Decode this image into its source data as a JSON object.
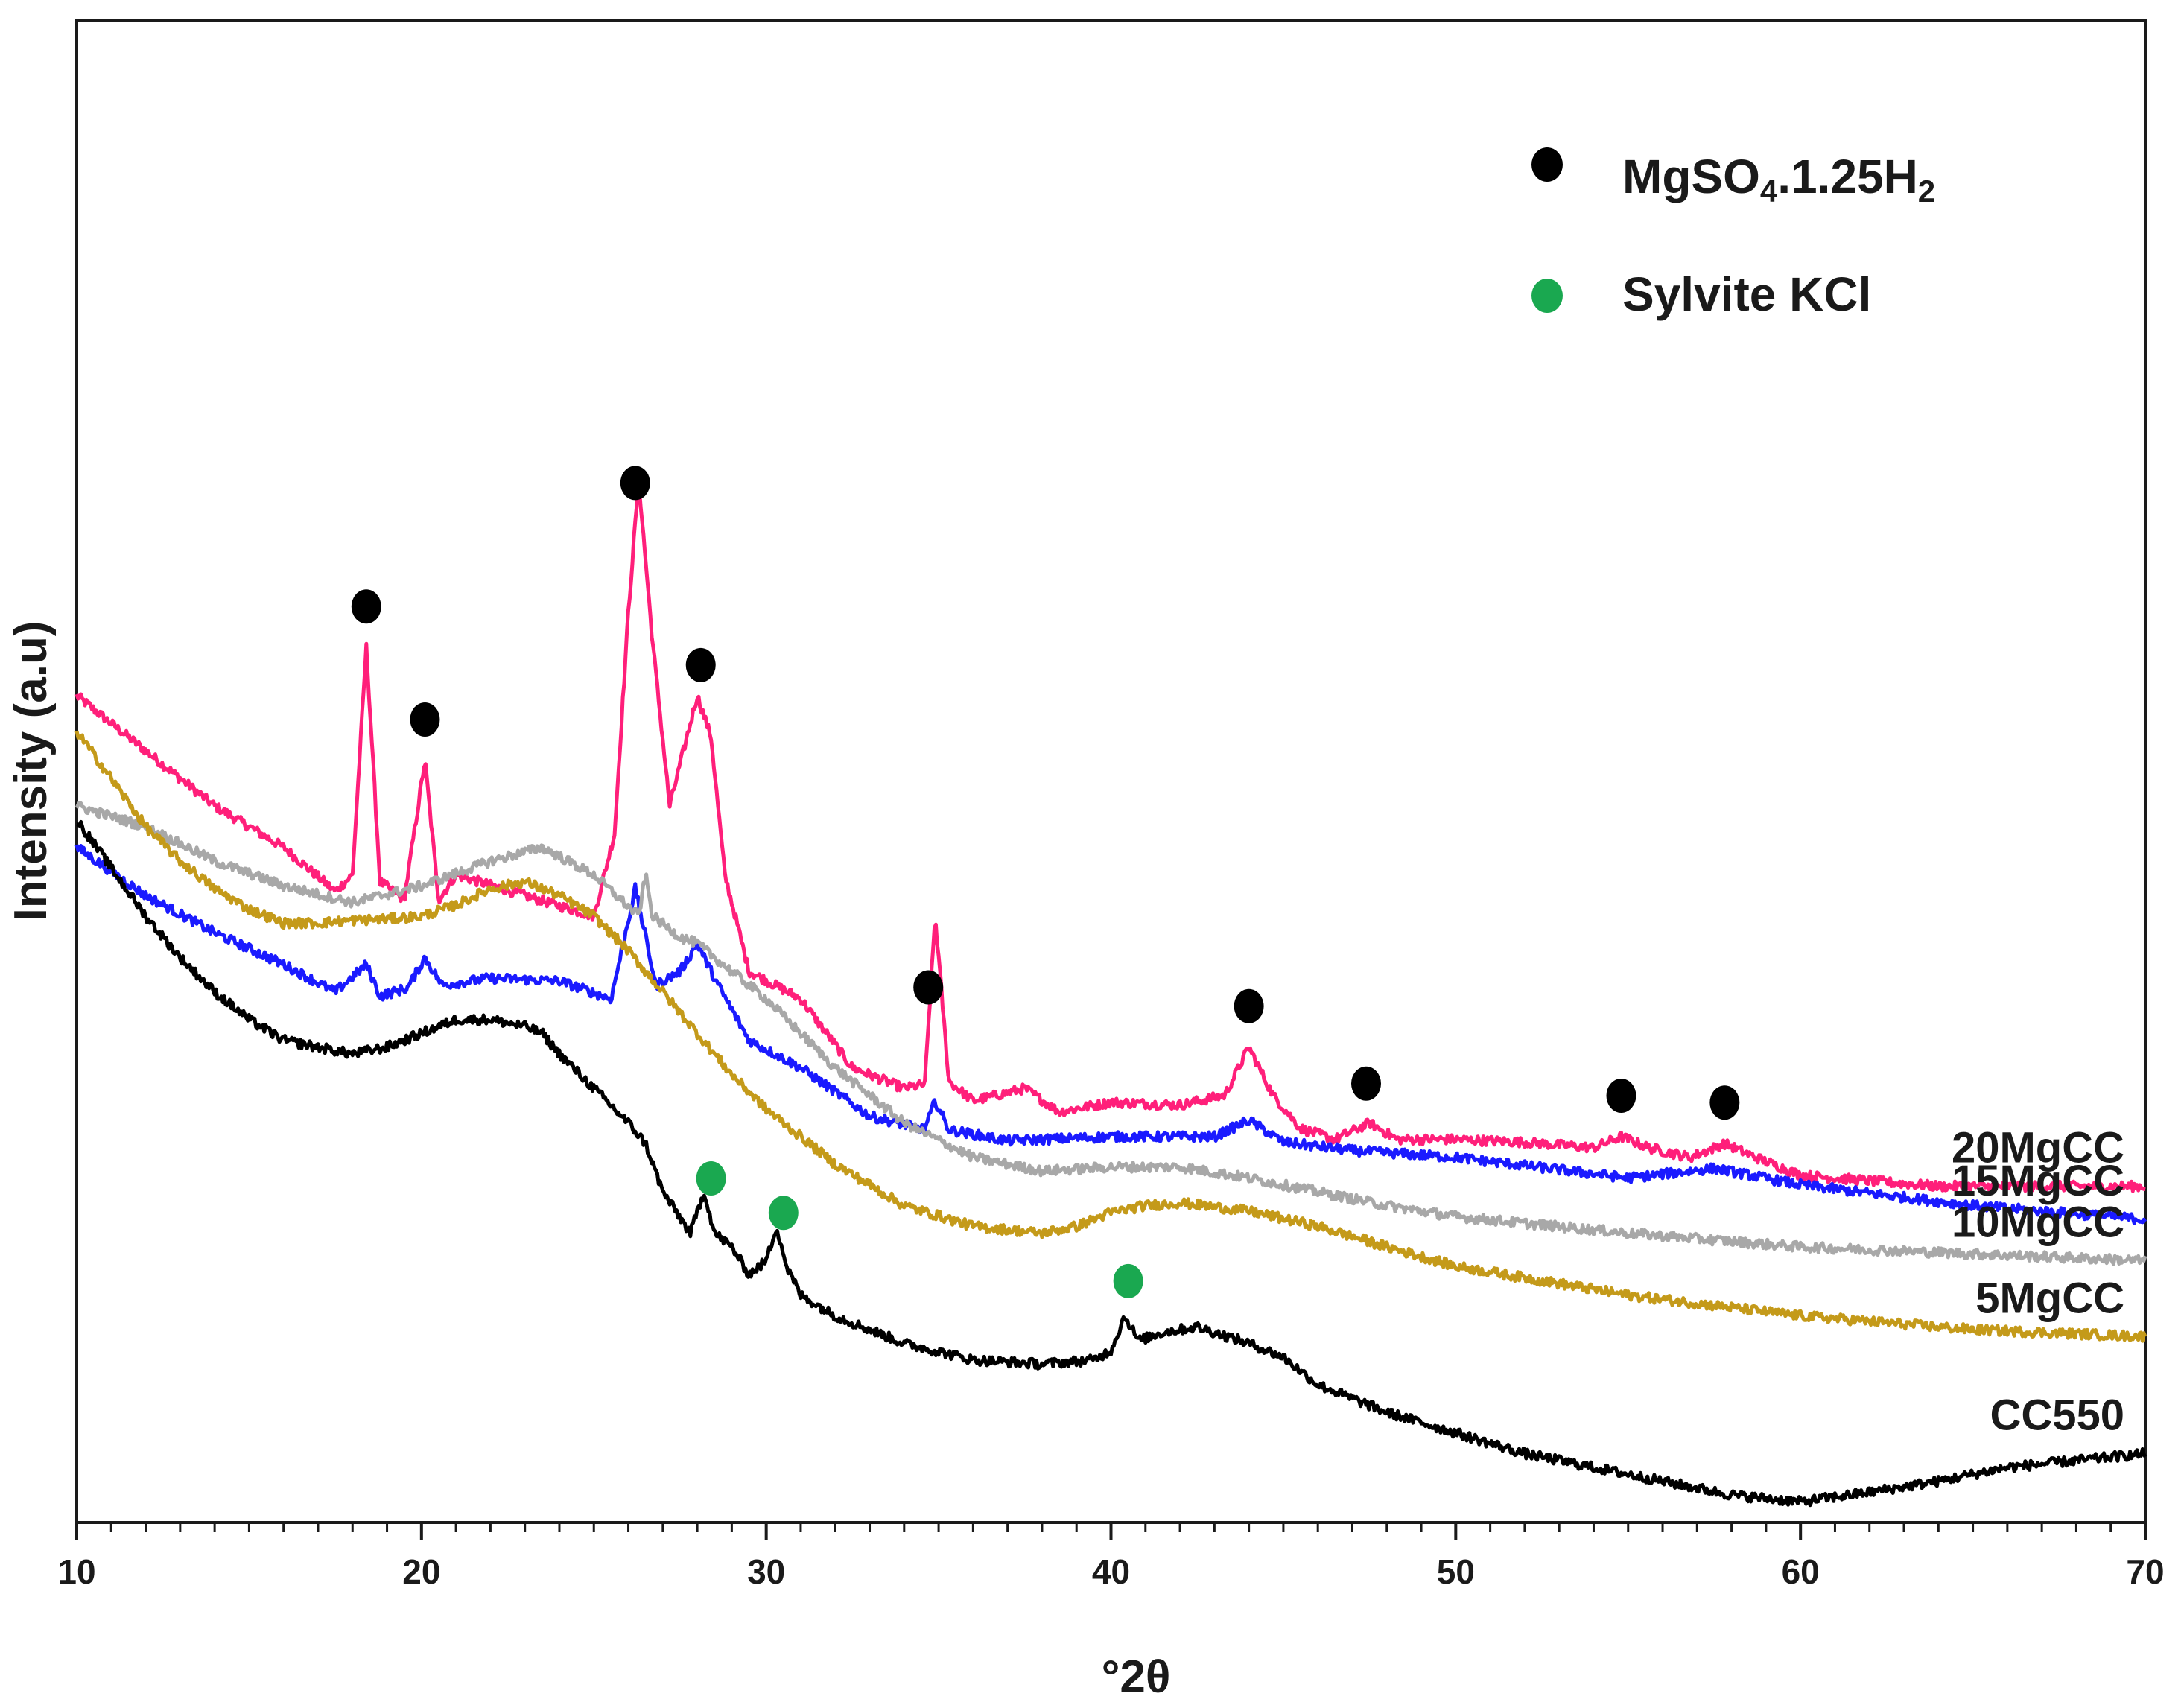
{
  "chart_data": {
    "type": "line",
    "title": "",
    "xlabel": "°2θ",
    "ylabel": "Intensity (a.u)",
    "xlim": [
      10,
      70
    ],
    "x_ticks": [
      10,
      20,
      30,
      40,
      50,
      60,
      70
    ],
    "y_units": "arbitrary (stacked, offset traces)",
    "grid": false,
    "legend": {
      "placement": "top-right",
      "entries": [
        {
          "marker": "black-circle",
          "color": "#000000",
          "label_main": "MgSO",
          "label_sub1": "4",
          "label_mid": ".1.25H",
          "label_sub2": "2"
        },
        {
          "marker": "green-circle",
          "color": "#1aa850",
          "label": "Sylvite KCl"
        }
      ]
    },
    "series": [
      {
        "name": "20MgCC",
        "color": "#ff1f7a",
        "x": [
          10,
          12,
          14,
          16,
          17.5,
          18,
          18.4,
          18.8,
          19.5,
          20.1,
          20.5,
          21,
          23,
          25,
          25.6,
          26,
          26.3,
          26.7,
          27.2,
          27.6,
          28,
          28.4,
          28.8,
          29.5,
          31,
          32.5,
          34,
          34.6,
          34.9,
          35.3,
          36,
          37.5,
          38.5,
          40,
          42,
          43.3,
          44,
          44.7,
          45.5,
          46.5,
          47.5,
          48.3,
          50,
          52,
          54,
          54.8,
          55.6,
          56.8,
          57.8,
          58.7,
          60,
          64,
          70
        ],
        "y": [
          600,
          560,
          520,
          490,
          458,
          470,
          635,
          465,
          452,
          553,
          452,
          470,
          455,
          440,
          500,
          660,
          757,
          640,
          520,
          560,
          600,
          570,
          470,
          400,
          380,
          330,
          315,
          318,
          440,
          320,
          306,
          315,
          298,
          305,
          303,
          310,
          345,
          310,
          286,
          278,
          290,
          278,
          278,
          276,
          272,
          280,
          272,
          265,
          275,
          265,
          252,
          244,
          244
        ]
      },
      {
        "name": "15MgCC",
        "color": "#1a1aff",
        "x": [
          10,
          12,
          14,
          16,
          17.5,
          18.4,
          18.8,
          19.6,
          20.1,
          20.6,
          22,
          24,
          25.5,
          26.2,
          26.8,
          27.5,
          28,
          28.6,
          29.5,
          31,
          33,
          34.6,
          34.9,
          35.3,
          37,
          40,
          43,
          44,
          45,
          47,
          50,
          55,
          57.5,
          60,
          65,
          70
        ],
        "y": [
          490,
          455,
          428,
          405,
          385,
          405,
          382,
          388,
          410,
          390,
          395,
          393,
          380,
          460,
          390,
          400,
          420,
          390,
          350,
          330,
          295,
          285,
          306,
          285,
          277,
          280,
          280,
          292,
          276,
          270,
          265,
          250,
          257,
          245,
          230,
          220
        ]
      },
      {
        "name": "10MgCC",
        "color": "#a8a8a8",
        "x": [
          10,
          12,
          14,
          16,
          18,
          20,
          22,
          23.5,
          25,
          26.3,
          26.5,
          26.7,
          27.5,
          28,
          29,
          30,
          32,
          34,
          36,
          38,
          40,
          42,
          44,
          46,
          48,
          50,
          55,
          60,
          65,
          70
        ],
        "y": [
          520,
          505,
          480,
          462,
          450,
          462,
          480,
          490,
          470,
          440,
          470,
          440,
          425,
          420,
          400,
          380,
          330,
          290,
          265,
          255,
          258,
          258,
          250,
          240,
          230,
          222,
          210,
          200,
          195,
          190
        ]
      },
      {
        "name": "5MgCC",
        "color": "#c49a1a",
        "x": [
          10,
          11,
          12,
          13,
          14,
          15,
          16,
          17,
          18,
          19,
          20,
          21,
          22,
          23,
          24,
          25,
          26,
          27,
          28,
          29,
          30,
          31,
          32,
          33,
          34,
          36,
          38,
          39,
          40,
          41,
          42,
          44,
          46,
          48,
          50,
          55,
          60,
          65,
          70
        ],
        "y": [
          574,
          540,
          505,
          480,
          460,
          445,
          435,
          435,
          437,
          438,
          440,
          448,
          460,
          465,
          455,
          440,
          415,
          385,
          355,
          325,
          300,
          280,
          260,
          245,
          230,
          215,
          210,
          215,
          225,
          230,
          232,
          226,
          215,
          200,
          186,
          165,
          150,
          140,
          135
        ]
      },
      {
        "name": "CC550",
        "color": "#000000",
        "x": [
          10,
          11,
          12,
          13,
          14,
          15,
          16,
          17,
          18,
          19,
          20,
          21,
          22,
          23,
          23.5,
          24,
          25,
          26,
          26.5,
          27,
          27.8,
          28.2,
          28.5,
          29,
          29.5,
          30,
          30.3,
          30.6,
          31,
          32,
          34,
          36,
          38,
          39.5,
          40,
          40.4,
          40.8,
          41.5,
          42.5,
          44,
          45,
          46,
          48,
          50,
          52,
          55,
          58,
          60,
          62,
          64,
          66,
          68,
          70
        ],
        "y": [
          510,
          475,
          440,
          410,
          385,
          365,
          350,
          345,
          340,
          345,
          355,
          365,
          365,
          360,
          355,
          340,
          315,
          290,
          275,
          240,
          210,
          240,
          210,
          200,
          180,
          190,
          215,
          185,
          165,
          150,
          130,
          118,
          115,
          118,
          125,
          150,
          132,
          138,
          142,
          130,
          120,
          100,
          80,
          65,
          50,
          35,
          20,
          15,
          22,
          30,
          40,
          45,
          50
        ]
      }
    ],
    "peak_markers": [
      {
        "phase": "MgSO4.1.25H2",
        "color": "#000000",
        "x": [
          18.4,
          20.1,
          26.2,
          28.1,
          34.7,
          44,
          47.4,
          54.8,
          57.8
        ]
      },
      {
        "phase": "Sylvite KCl",
        "color": "#1aa850",
        "x": [
          28.4,
          30.5,
          40.5
        ]
      }
    ]
  }
}
